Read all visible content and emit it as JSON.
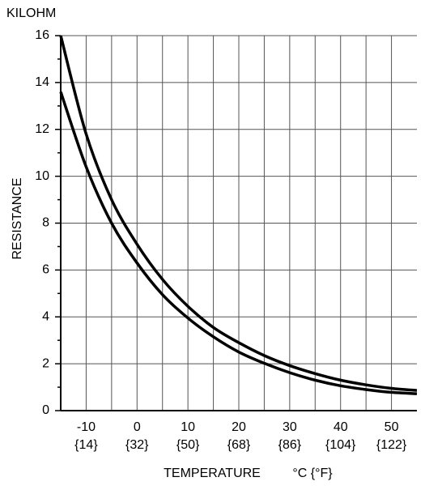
{
  "chart_data": {
    "type": "line",
    "y_unit_label": "KILOHM",
    "ylabel": "RESISTANCE",
    "xlabel": "TEMPERATURE",
    "x_unit_label": "°C {°F}",
    "x": [
      -15,
      -10,
      -5,
      0,
      5,
      10,
      15,
      20,
      25,
      30,
      35,
      40,
      45,
      50,
      55
    ],
    "series": [
      {
        "color": "#000000",
        "values": [
          16,
          11.8,
          9.0,
          7.1,
          5.6,
          4.45,
          3.55,
          2.9,
          2.35,
          1.92,
          1.58,
          1.3,
          1.1,
          0.95,
          0.86
        ]
      },
      {
        "color": "#000000",
        "values": [
          13.6,
          10.4,
          8.0,
          6.3,
          4.95,
          3.95,
          3.15,
          2.5,
          2.02,
          1.62,
          1.3,
          1.06,
          0.9,
          0.78,
          0.72
        ]
      }
    ],
    "xlim": [
      -15,
      55
    ],
    "ylim": [
      0,
      16
    ],
    "xticks": [
      -10,
      0,
      10,
      20,
      30,
      40,
      50
    ],
    "xticks_fahrenheit": [
      "{14}",
      "{32}",
      "{50}",
      "{68}",
      "{86}",
      "{104}",
      "{122}"
    ],
    "xgrid_minor": [
      -5,
      5,
      15,
      25,
      35,
      45
    ],
    "yticks": [
      0,
      2,
      4,
      6,
      8,
      10,
      12,
      14,
      16
    ],
    "yticks_minor": [
      1,
      3,
      5,
      7,
      9,
      11,
      13,
      15
    ],
    "grid": true
  }
}
